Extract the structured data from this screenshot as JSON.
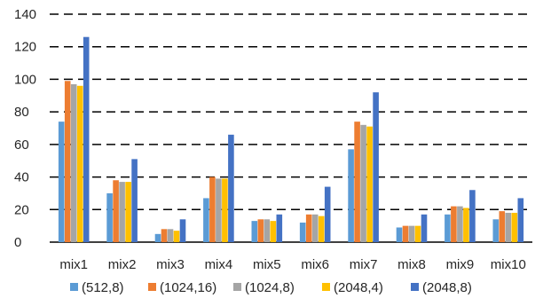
{
  "chart_data": {
    "type": "bar",
    "title": "",
    "xlabel": "",
    "ylabel": "",
    "ylim": [
      0,
      140
    ],
    "yticks": [
      0,
      20,
      40,
      60,
      80,
      100,
      120,
      140
    ],
    "grid": "dashed horizontal",
    "legend": "bottom",
    "categories": [
      "mix1",
      "mix2",
      "mix3",
      "mix4",
      "mix5",
      "mix6",
      "mix7",
      "mix8",
      "mix9",
      "mix10"
    ],
    "series": [
      {
        "name": "(512,8)",
        "color": "#5B9BD5",
        "values": [
          74,
          30,
          5,
          27,
          13,
          12,
          57,
          9,
          17,
          14
        ]
      },
      {
        "name": "(1024,16)",
        "color": "#ED7D31",
        "values": [
          99,
          38,
          8,
          40,
          14,
          17,
          74,
          10,
          22,
          19
        ]
      },
      {
        "name": "(1024,8)",
        "color": "#A5A5A5",
        "values": [
          97,
          37,
          8,
          39,
          14,
          17,
          72,
          10,
          22,
          18
        ]
      },
      {
        "name": "(2048,4)",
        "color": "#FFC000",
        "values": [
          96,
          37,
          7,
          39,
          13,
          16,
          71,
          10,
          21,
          18
        ]
      },
      {
        "name": "(2048,8)",
        "color": "#4472C4",
        "values": [
          126,
          51,
          14,
          66,
          17,
          34,
          92,
          17,
          32,
          27
        ]
      }
    ]
  }
}
